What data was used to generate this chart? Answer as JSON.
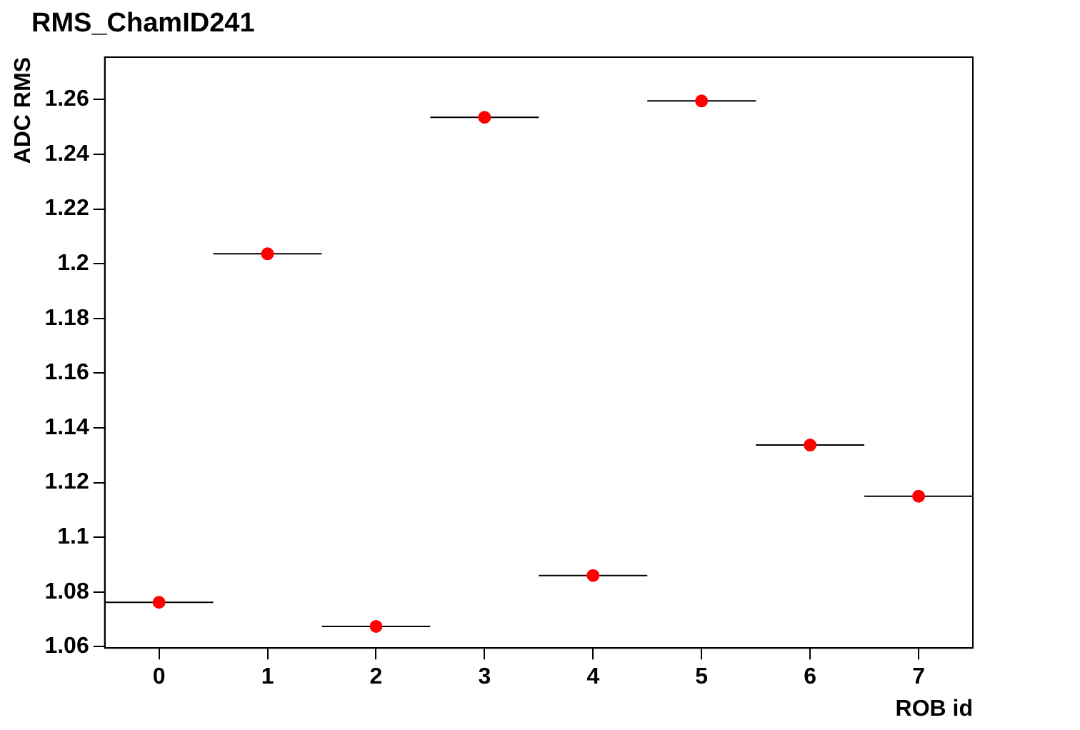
{
  "chart_data": {
    "type": "scatter",
    "title": "RMS_ChamID241",
    "xlabel": "ROB id",
    "ylabel": "ADC RMS",
    "x": [
      0,
      1,
      2,
      3,
      4,
      5,
      6,
      7
    ],
    "series": [
      {
        "color": "#ff0000",
        "values": [
          1.0762,
          1.2036,
          1.0674,
          1.2535,
          1.086,
          1.2595,
          1.1337,
          1.115
        ],
        "xerrors": [
          0.5,
          0.5,
          0.5,
          0.5,
          0.5,
          0.5,
          0.5,
          0.5
        ]
      }
    ],
    "xlim": [
      -0.5,
      7.5
    ],
    "xticks": [
      0,
      1,
      2,
      3,
      4,
      5,
      6,
      7
    ],
    "ylim": [
      1.0595,
      1.2755
    ],
    "yticks": [
      1.06,
      1.08,
      1.1,
      1.12,
      1.14,
      1.16,
      1.18,
      1.2,
      1.22,
      1.24,
      1.26
    ],
    "grid": false,
    "legend": false,
    "marker": "circle"
  }
}
